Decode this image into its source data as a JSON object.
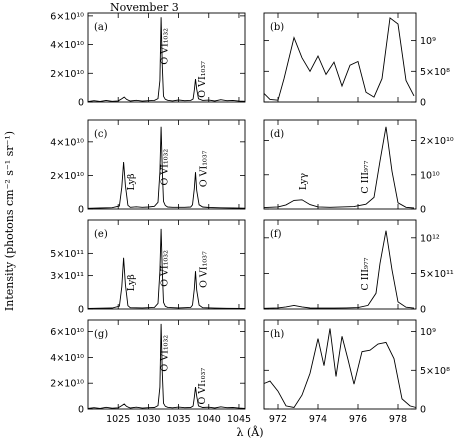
{
  "figure": {
    "title": "November 3",
    "xlabel": "λ (Å)",
    "ylabel": "Intensity (photons cm⁻² s⁻¹ sr⁻¹)"
  },
  "chart_data": [
    {
      "panel": "(a)",
      "type": "line",
      "xlim": [
        1020,
        1046
      ],
      "ylim": [
        0,
        62000000000.0
      ],
      "xticks": [
        1025,
        1030,
        1035,
        1040,
        1045
      ],
      "xtick_labels": [
        "",
        "",
        "",
        "",
        ""
      ],
      "yticks": [
        0,
        20000000000.0,
        40000000000.0,
        60000000000.0
      ],
      "ytick_labels": [
        "0",
        "2×10¹⁰",
        "4×10¹⁰",
        "6×10¹⁰"
      ],
      "yaxis": "left",
      "x": [
        1020.0,
        1021.0,
        1022.0,
        1023.0,
        1024.0,
        1025.0,
        1025.6,
        1026.0,
        1026.4,
        1027.0,
        1028.0,
        1029.0,
        1030.0,
        1031.0,
        1031.6,
        1031.9,
        1032.1,
        1032.3,
        1032.5,
        1032.8,
        1033.2,
        1034.0,
        1035.0,
        1036.0,
        1037.0,
        1037.4,
        1037.6,
        1037.8,
        1038.0,
        1038.3,
        1039.0,
        1040.0,
        1041.0,
        1042.0,
        1043.0,
        1044.0,
        1045.0,
        1046.0
      ],
      "y": [
        300000000.0,
        900000000.0,
        400000000.0,
        1100000000.0,
        500000000.0,
        800000000.0,
        2200000000.0,
        3400000000.0,
        1800000000.0,
        700000000.0,
        1200000000.0,
        600000000.0,
        900000000.0,
        1100000000.0,
        2400000000.0,
        15000000000.0,
        59000000000.0,
        25000000000.0,
        4000000000.0,
        1900000000.0,
        1200000000.0,
        800000000.0,
        1400000000.0,
        900000000.0,
        1100000000.0,
        2100000000.0,
        8000000000.0,
        16000000000.0,
        9000000000.0,
        2200000000.0,
        1100000000.0,
        1300000000.0,
        700000000.0,
        1600000000.0,
        900000000.0,
        1100000000.0,
        600000000.0,
        500000000.0
      ],
      "annotations": [
        {
          "text": "O VI₁₀₃₂",
          "x": 1033.2,
          "y": 26000000000.0,
          "rotate": true
        },
        {
          "text": "O VI₁₀₃₇",
          "x": 1039.4,
          "y": 3000000000.0,
          "rotate": true
        }
      ]
    },
    {
      "panel": "(b)",
      "type": "line",
      "xlim": [
        971.3,
        978.9
      ],
      "ylim": [
        0,
        1450000000.0
      ],
      "xticks": [
        972,
        974,
        976,
        978
      ],
      "xtick_labels": [
        "",
        "",
        "",
        ""
      ],
      "yticks": [
        0,
        500000000.0,
        1000000000.0
      ],
      "ytick_labels": [
        "0",
        "5×10⁸",
        "10⁹"
      ],
      "yaxis": "right",
      "x": [
        971.3,
        971.6,
        972.0,
        972.3,
        972.8,
        973.2,
        973.6,
        974.0,
        974.4,
        974.8,
        975.2,
        975.6,
        976.0,
        976.4,
        976.8,
        977.2,
        977.6,
        978.0,
        978.4,
        978.8
      ],
      "y": [
        140000000.0,
        40000000.0,
        30000000.0,
        380000000.0,
        1050000000.0,
        720000000.0,
        500000000.0,
        750000000.0,
        450000000.0,
        650000000.0,
        260000000.0,
        600000000.0,
        660000000.0,
        160000000.0,
        80000000.0,
        380000000.0,
        1370000000.0,
        1270000000.0,
        350000000.0,
        100000000.0
      ],
      "annotations": []
    },
    {
      "panel": "(c)",
      "type": "line",
      "xlim": [
        1020,
        1046
      ],
      "ylim": [
        0,
        53000000000.0
      ],
      "xticks": [
        1025,
        1030,
        1035,
        1040,
        1045
      ],
      "xtick_labels": [
        "",
        "",
        "",
        "",
        ""
      ],
      "yticks": [
        0,
        20000000000.0,
        40000000000.0
      ],
      "ytick_labels": [
        "0",
        "2×10¹⁰",
        "4×10¹⁰"
      ],
      "yaxis": "left",
      "x": [
        1020.0,
        1022.0,
        1024.0,
        1025.2,
        1025.6,
        1025.9,
        1026.2,
        1026.6,
        1027.0,
        1028.0,
        1029.0,
        1030.0,
        1031.0,
        1031.6,
        1031.9,
        1032.1,
        1032.3,
        1032.5,
        1032.8,
        1033.2,
        1034.0,
        1036.0,
        1037.0,
        1037.3,
        1037.6,
        1037.8,
        1038.0,
        1038.4,
        1039.0,
        1040.0,
        1042.0,
        1044.0,
        1046.0
      ],
      "y": [
        400000000.0,
        600000000.0,
        800000000.0,
        1800000000.0,
        13000000000.0,
        28000000000.0,
        14000000000.0,
        2200000000.0,
        1000000000.0,
        1300000000.0,
        1000000000.0,
        1200000000.0,
        1600000000.0,
        4000000000.0,
        22000000000.0,
        49000000000.0,
        23000000000.0,
        4500000000.0,
        2100000000.0,
        1200000000.0,
        1000000000.0,
        1000000000.0,
        1200000000.0,
        2500000000.0,
        12000000000.0,
        22000000000.0,
        11000000000.0,
        2500000000.0,
        1200000000.0,
        900000000.0,
        700000000.0,
        600000000.0,
        500000000.0
      ],
      "annotations": [
        {
          "text": "Lyβ",
          "x": 1027.6,
          "y": 11000000000.0,
          "rotate": true
        },
        {
          "text": "O VI₁₀₃₂",
          "x": 1033.2,
          "y": 14000000000.0,
          "rotate": true
        },
        {
          "text": "O VI₁₀₃₇",
          "x": 1039.6,
          "y": 13000000000.0,
          "rotate": true
        }
      ]
    },
    {
      "panel": "(d)",
      "type": "line",
      "xlim": [
        971.3,
        978.9
      ],
      "ylim": [
        0,
        26000000000.0
      ],
      "xticks": [
        972,
        974,
        976,
        978
      ],
      "xtick_labels": [
        "",
        "",
        "",
        ""
      ],
      "yticks": [
        0,
        10000000000.0,
        20000000000.0
      ],
      "ytick_labels": [
        "0",
        "10¹⁰",
        "2×10¹⁰"
      ],
      "yaxis": "right",
      "x": [
        971.3,
        972.0,
        972.4,
        972.8,
        973.2,
        973.6,
        974.0,
        974.6,
        975.2,
        975.8,
        976.4,
        976.8,
        977.1,
        977.4,
        977.7,
        978.0,
        978.4,
        978.8
      ],
      "y": [
        400000000.0,
        600000000.0,
        1200000000.0,
        2500000000.0,
        2700000000.0,
        1300000000.0,
        600000000.0,
        500000000.0,
        600000000.0,
        700000000.0,
        1400000000.0,
        3400000000.0,
        14000000000.0,
        24000000000.0,
        11000000000.0,
        1800000000.0,
        500000000.0,
        300000000.0
      ],
      "annotations": [
        {
          "text": "Lyγ",
          "x": 973.4,
          "y": 5500000000.0,
          "rotate": true
        },
        {
          "text": "C III₉₇₇",
          "x": 976.5,
          "y": 4500000000.0,
          "rotate": true
        }
      ]
    },
    {
      "panel": "(e)",
      "type": "line",
      "xlim": [
        1020,
        1046
      ],
      "ylim": [
        0,
        800000000000.0
      ],
      "xticks": [
        1025,
        1030,
        1035,
        1040,
        1045
      ],
      "xtick_labels": [
        "",
        "",
        "",
        "",
        ""
      ],
      "yticks": [
        0,
        300000000000.0,
        500000000000.0
      ],
      "ytick_labels": [
        "0",
        "3×10¹¹",
        "5×10¹¹"
      ],
      "yaxis": "left",
      "x": [
        1020.0,
        1022.0,
        1024.0,
        1025.2,
        1025.6,
        1025.9,
        1026.2,
        1026.6,
        1027.0,
        1029.0,
        1031.0,
        1031.6,
        1031.9,
        1032.1,
        1032.3,
        1032.5,
        1032.8,
        1033.2,
        1035.0,
        1037.0,
        1037.3,
        1037.6,
        1037.8,
        1038.0,
        1038.4,
        1039.0,
        1041.0,
        1043.0,
        1046.0
      ],
      "y": [
        5000000000.0,
        7000000000.0,
        9000000000.0,
        25000000000.0,
        200000000000.0,
        460000000000.0,
        220000000000.0,
        30000000000.0,
        12000000000.0,
        10000000000.0,
        14000000000.0,
        50000000000.0,
        340000000000.0,
        720000000000.0,
        340000000000.0,
        60000000000.0,
        24000000000.0,
        14000000000.0,
        10000000000.0,
        14000000000.0,
        35000000000.0,
        180000000000.0,
        340000000000.0,
        170000000000.0,
        35000000000.0,
        12000000000.0,
        8000000000.0,
        6000000000.0,
        5000000000.0
      ],
      "annotations": [
        {
          "text": "Lyβ",
          "x": 1027.6,
          "y": 160000000000.0,
          "rotate": true
        },
        {
          "text": "O VI₁₀₃₂",
          "x": 1033.2,
          "y": 200000000000.0,
          "rotate": true
        },
        {
          "text": "O VI₁₀₃₇",
          "x": 1039.6,
          "y": 190000000000.0,
          "rotate": true
        }
      ]
    },
    {
      "panel": "(f)",
      "type": "line",
      "xlim": [
        971.3,
        978.9
      ],
      "ylim": [
        0,
        1250000000000.0
      ],
      "xticks": [
        972,
        974,
        976,
        978
      ],
      "xtick_labels": [
        "",
        "",
        "",
        ""
      ],
      "yticks": [
        0,
        500000000000.0,
        1000000000000.0
      ],
      "ytick_labels": [
        "0",
        "5×10¹¹",
        "10¹²"
      ],
      "yaxis": "right",
      "x": [
        971.3,
        972.0,
        972.4,
        972.8,
        973.2,
        973.6,
        974.2,
        974.8,
        975.4,
        976.0,
        976.5,
        976.9,
        977.1,
        977.4,
        977.7,
        978.0,
        978.4,
        978.8
      ],
      "y": [
        10000000000.0,
        15000000000.0,
        30000000000.0,
        50000000000.0,
        30000000000.0,
        14000000000.0,
        12000000000.0,
        13000000000.0,
        15000000000.0,
        20000000000.0,
        50000000000.0,
        220000000000.0,
        640000000000.0,
        1100000000000.0,
        550000000000.0,
        100000000000.0,
        25000000000.0,
        12000000000.0
      ],
      "annotations": [
        {
          "text": "C III₉₇₇",
          "x": 976.5,
          "y": 260000000000.0,
          "rotate": true
        }
      ]
    },
    {
      "panel": "(g)",
      "type": "line",
      "xlim": [
        1020,
        1046
      ],
      "ylim": [
        0,
        69000000000.0
      ],
      "xticks": [
        1025,
        1030,
        1035,
        1040,
        1045
      ],
      "xtick_labels": [
        "1025",
        "1030",
        "1035",
        "1040",
        "1045"
      ],
      "yticks": [
        0,
        20000000000.0,
        40000000000.0,
        60000000000.0
      ],
      "ytick_labels": [
        "0",
        "2×10¹⁰",
        "4×10¹⁰",
        "6×10¹⁰"
      ],
      "yaxis": "left",
      "x": [
        1020.0,
        1021.0,
        1022.0,
        1023.0,
        1024.0,
        1025.0,
        1025.6,
        1026.0,
        1026.4,
        1027.0,
        1028.0,
        1029.0,
        1030.0,
        1031.0,
        1031.6,
        1031.9,
        1032.1,
        1032.3,
        1032.5,
        1032.8,
        1033.2,
        1034.0,
        1035.0,
        1036.0,
        1037.0,
        1037.4,
        1037.6,
        1037.8,
        1038.0,
        1038.3,
        1039.0,
        1040.0,
        1041.0,
        1042.0,
        1043.0,
        1044.0,
        1045.0,
        1046.0
      ],
      "y": [
        400000000.0,
        1000000000.0,
        500000000.0,
        1300000000.0,
        600000000.0,
        900000000.0,
        2600000000.0,
        3900000000.0,
        2000000000.0,
        800000000.0,
        1400000000.0,
        700000000.0,
        1000000000.0,
        1200000000.0,
        2600000000.0,
        17000000000.0,
        66000000000.0,
        28000000000.0,
        4400000000.0,
        2100000000.0,
        1300000000.0,
        900000000.0,
        1500000000.0,
        1000000000.0,
        1200000000.0,
        2300000000.0,
        9000000000.0,
        17000000000.0,
        10000000000.0,
        2400000000.0,
        1200000000.0,
        1400000000.0,
        800000000.0,
        1700000000.0,
        1000000000.0,
        1200000000.0,
        700000000.0,
        500000000.0
      ],
      "annotations": [
        {
          "text": "O VI₁₀₃₂",
          "x": 1033.2,
          "y": 29000000000.0,
          "rotate": true
        },
        {
          "text": "O VI₁₀₃₇",
          "x": 1039.4,
          "y": 3500000000.0,
          "rotate": true
        }
      ]
    },
    {
      "panel": "(h)",
      "type": "line",
      "xlim": [
        971.3,
        978.9
      ],
      "ylim": [
        0,
        1150000000.0
      ],
      "xticks": [
        972,
        974,
        976,
        978
      ],
      "xtick_labels": [
        "972",
        "974",
        "976",
        "978"
      ],
      "yticks": [
        0,
        500000000.0,
        1000000000.0
      ],
      "ytick_labels": [
        "0",
        "5×10⁸",
        "10⁹"
      ],
      "yaxis": "right",
      "x": [
        971.3,
        971.6,
        972.0,
        972.4,
        972.8,
        973.2,
        973.6,
        974.0,
        974.3,
        974.6,
        974.9,
        975.2,
        975.5,
        975.8,
        976.2,
        976.6,
        977.0,
        977.4,
        977.8,
        978.2,
        978.6,
        978.9
      ],
      "y": [
        330000000.0,
        360000000.0,
        230000000.0,
        40000000.0,
        20000000.0,
        180000000.0,
        460000000.0,
        910000000.0,
        560000000.0,
        1040000000.0,
        420000000.0,
        940000000.0,
        640000000.0,
        320000000.0,
        740000000.0,
        760000000.0,
        840000000.0,
        860000000.0,
        650000000.0,
        130000000.0,
        40000000.0,
        20000000.0
      ],
      "annotations": []
    }
  ]
}
